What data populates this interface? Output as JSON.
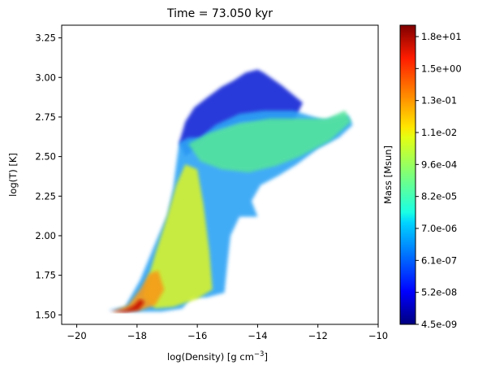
{
  "chart_data": {
    "type": "heatmap",
    "title": "Time = 73.050 kyr",
    "xlabel_main": "log(Density) [g cm",
    "xlabel_sup": "−3",
    "xlabel_close": "]",
    "ylabel": "log(T) [K]",
    "xlim": [
      -20.5,
      -10
    ],
    "ylim": [
      1.44,
      3.33
    ],
    "xticks": [
      {
        "value": -20,
        "label": "−20"
      },
      {
        "value": -18,
        "label": "−18"
      },
      {
        "value": -16,
        "label": "−16"
      },
      {
        "value": -14,
        "label": "−14"
      },
      {
        "value": -12,
        "label": "−12"
      },
      {
        "value": -10,
        "label": "−10"
      }
    ],
    "yticks": [
      {
        "value": 1.5,
        "label": "1.50"
      },
      {
        "value": 1.75,
        "label": "1.75"
      },
      {
        "value": 2.0,
        "label": "2.00"
      },
      {
        "value": 2.25,
        "label": "2.25"
      },
      {
        "value": 2.5,
        "label": "2.50"
      },
      {
        "value": 2.75,
        "label": "2.75"
      },
      {
        "value": 3.0,
        "label": "3.00"
      },
      {
        "value": 3.25,
        "label": "3.25"
      }
    ],
    "colorbar": {
      "label": "Mass [Msun]",
      "scale": "log",
      "colormap": "jet",
      "ticks": [
        "4.5e-09",
        "5.2e-08",
        "6.1e-07",
        "7.0e-06",
        "8.2e-05",
        "9.6e-04",
        "1.1e-02",
        "1.3e-01",
        "1.5e+00",
        "1.8e+01"
      ]
    },
    "regions": [
      {
        "name": "hot-low-density-edge",
        "color": "#1a2fd8",
        "outline": [
          [
            -16.6,
            2.59
          ],
          [
            -16.4,
            2.72
          ],
          [
            -16.1,
            2.81
          ],
          [
            -15.7,
            2.87
          ],
          [
            -15.2,
            2.94
          ],
          [
            -14.8,
            2.98
          ],
          [
            -14.4,
            3.03
          ],
          [
            -14.0,
            3.05
          ],
          [
            -13.8,
            3.03
          ],
          [
            -13.2,
            2.95
          ],
          [
            -12.5,
            2.84
          ],
          [
            -12.8,
            2.72
          ],
          [
            -13.5,
            2.71
          ],
          [
            -14.5,
            2.72
          ],
          [
            -15.3,
            2.67
          ],
          [
            -15.9,
            2.58
          ],
          [
            -16.4,
            2.5
          ]
        ]
      },
      {
        "name": "main-plume",
        "color": "#2ea3f5",
        "outline": [
          [
            -18.95,
            1.53
          ],
          [
            -18.4,
            1.55
          ],
          [
            -17.9,
            1.72
          ],
          [
            -17.4,
            1.95
          ],
          [
            -17.0,
            2.13
          ],
          [
            -16.8,
            2.3
          ],
          [
            -16.7,
            2.45
          ],
          [
            -16.6,
            2.59
          ],
          [
            -16.3,
            2.62
          ],
          [
            -15.9,
            2.62
          ],
          [
            -15.4,
            2.7
          ],
          [
            -14.6,
            2.77
          ],
          [
            -13.8,
            2.79
          ],
          [
            -12.8,
            2.79
          ],
          [
            -11.8,
            2.73
          ],
          [
            -11.0,
            2.76
          ],
          [
            -10.85,
            2.7
          ],
          [
            -11.3,
            2.62
          ],
          [
            -12.0,
            2.55
          ],
          [
            -12.7,
            2.45
          ],
          [
            -13.3,
            2.38
          ],
          [
            -13.9,
            2.32
          ],
          [
            -14.2,
            2.22
          ],
          [
            -14.0,
            2.12
          ],
          [
            -14.6,
            2.12
          ],
          [
            -14.9,
            2.0
          ],
          [
            -15.0,
            1.83
          ],
          [
            -15.1,
            1.64
          ],
          [
            -15.7,
            1.61
          ],
          [
            -16.2,
            1.61
          ],
          [
            -16.5,
            1.54
          ],
          [
            -17.2,
            1.52
          ],
          [
            -18.0,
            1.52
          ]
        ]
      },
      {
        "name": "upper-arm",
        "color": "#53e39c",
        "outline": [
          [
            -16.3,
            2.58
          ],
          [
            -15.6,
            2.65
          ],
          [
            -14.6,
            2.71
          ],
          [
            -13.6,
            2.74
          ],
          [
            -12.6,
            2.74
          ],
          [
            -11.7,
            2.74
          ],
          [
            -11.1,
            2.79
          ],
          [
            -10.9,
            2.72
          ],
          [
            -11.6,
            2.6
          ],
          [
            -12.6,
            2.5
          ],
          [
            -13.4,
            2.44
          ],
          [
            -14.3,
            2.4
          ],
          [
            -15.2,
            2.42
          ],
          [
            -15.9,
            2.47
          ]
        ]
      },
      {
        "name": "mid-density-ridge",
        "color": "#d6f22f",
        "outline": [
          [
            -17.8,
            1.62
          ],
          [
            -17.4,
            1.88
          ],
          [
            -17.0,
            2.12
          ],
          [
            -16.7,
            2.32
          ],
          [
            -16.4,
            2.45
          ],
          [
            -16.0,
            2.42
          ],
          [
            -15.8,
            2.2
          ],
          [
            -15.6,
            1.9
          ],
          [
            -15.5,
            1.66
          ],
          [
            -16.0,
            1.6
          ],
          [
            -16.8,
            1.55
          ],
          [
            -17.4,
            1.54
          ]
        ]
      },
      {
        "name": "dense-cold-core",
        "color": "#f69a14",
        "outline": [
          [
            -18.8,
            1.52
          ],
          [
            -18.3,
            1.56
          ],
          [
            -17.9,
            1.66
          ],
          [
            -17.6,
            1.76
          ],
          [
            -17.3,
            1.78
          ],
          [
            -17.1,
            1.66
          ],
          [
            -17.4,
            1.56
          ],
          [
            -17.9,
            1.53
          ]
        ]
      },
      {
        "name": "peak-mass",
        "color": "#c80c00",
        "outline": [
          [
            -18.9,
            1.52
          ],
          [
            -18.4,
            1.53
          ],
          [
            -18.1,
            1.56
          ],
          [
            -17.9,
            1.6
          ],
          [
            -17.75,
            1.58
          ],
          [
            -17.95,
            1.53
          ],
          [
            -18.4,
            1.515
          ]
        ]
      }
    ]
  }
}
